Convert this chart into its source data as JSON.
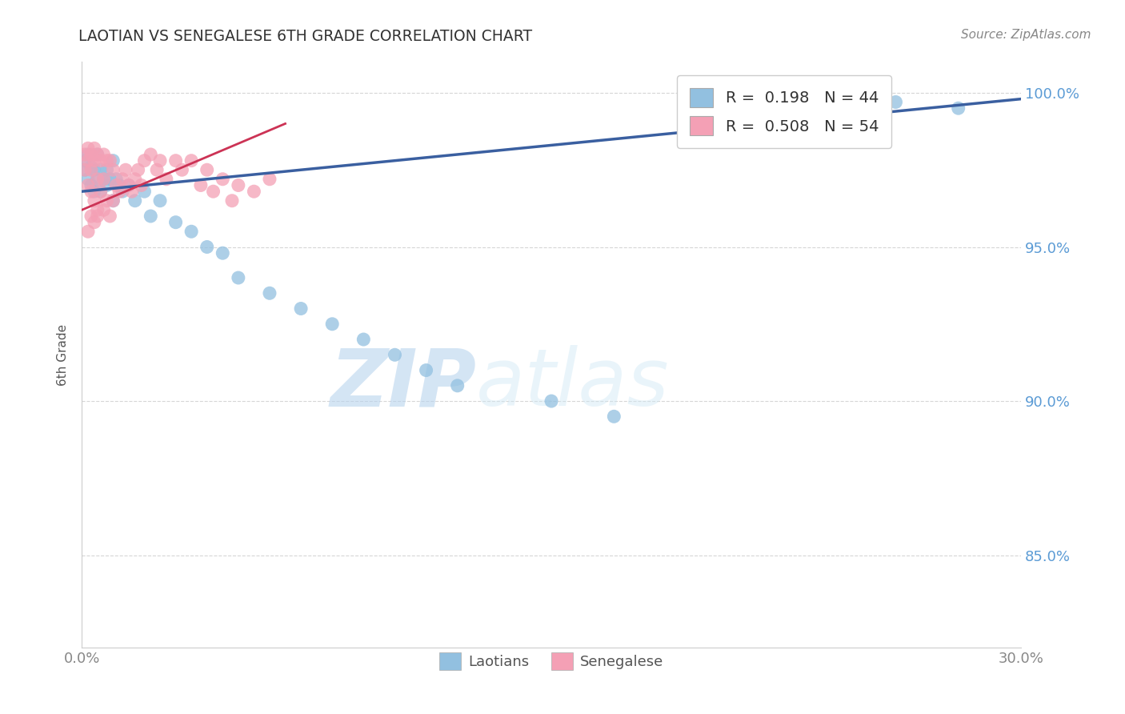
{
  "title": "LAOTIAN VS SENEGALESE 6TH GRADE CORRELATION CHART",
  "source": "Source: ZipAtlas.com",
  "ylabel": "6th Grade",
  "xmin": 0.0,
  "xmax": 0.3,
  "ymin": 0.82,
  "ymax": 1.01,
  "laotian_color": "#92c0e0",
  "senegalese_color": "#f4a0b5",
  "laotian_line_color": "#3a5fa0",
  "senegalese_line_color": "#cc3355",
  "R_laotian": 0.198,
  "N_laotian": 44,
  "R_senegalese": 0.508,
  "N_senegalese": 54,
  "watermark_zip": "ZIP",
  "watermark_atlas": "atlas",
  "grid_color": "#cccccc",
  "laotian_x": [
    0.001,
    0.001,
    0.002,
    0.002,
    0.003,
    0.003,
    0.004,
    0.004,
    0.005,
    0.005,
    0.006,
    0.006,
    0.007,
    0.008,
    0.008,
    0.009,
    0.01,
    0.01,
    0.011,
    0.012,
    0.013,
    0.015,
    0.017,
    0.02,
    0.022,
    0.025,
    0.03,
    0.035,
    0.04,
    0.045,
    0.05,
    0.06,
    0.07,
    0.08,
    0.09,
    0.1,
    0.11,
    0.12,
    0.15,
    0.17,
    0.2,
    0.23,
    0.26,
    0.28
  ],
  "laotian_y": [
    0.978,
    0.975,
    0.98,
    0.972,
    0.976,
    0.97,
    0.975,
    0.968,
    0.98,
    0.972,
    0.975,
    0.968,
    0.972,
    0.97,
    0.975,
    0.972,
    0.978,
    0.965,
    0.972,
    0.97,
    0.968,
    0.97,
    0.965,
    0.968,
    0.96,
    0.965,
    0.958,
    0.955,
    0.95,
    0.948,
    0.94,
    0.935,
    0.93,
    0.925,
    0.92,
    0.915,
    0.91,
    0.905,
    0.9,
    0.895,
    0.992,
    0.995,
    0.997,
    0.995
  ],
  "senegalese_x": [
    0.001,
    0.001,
    0.002,
    0.002,
    0.002,
    0.003,
    0.003,
    0.003,
    0.004,
    0.004,
    0.004,
    0.005,
    0.005,
    0.005,
    0.006,
    0.006,
    0.007,
    0.007,
    0.007,
    0.008,
    0.008,
    0.009,
    0.009,
    0.01,
    0.01,
    0.011,
    0.012,
    0.013,
    0.014,
    0.015,
    0.016,
    0.017,
    0.018,
    0.019,
    0.02,
    0.022,
    0.024,
    0.025,
    0.027,
    0.03,
    0.032,
    0.035,
    0.038,
    0.04,
    0.042,
    0.045,
    0.048,
    0.05,
    0.055,
    0.06,
    0.002,
    0.003,
    0.004,
    0.005
  ],
  "senegalese_y": [
    0.98,
    0.975,
    0.982,
    0.978,
    0.97,
    0.98,
    0.975,
    0.968,
    0.982,
    0.978,
    0.965,
    0.98,
    0.972,
    0.96,
    0.978,
    0.968,
    0.98,
    0.972,
    0.962,
    0.978,
    0.965,
    0.978,
    0.96,
    0.975,
    0.965,
    0.97,
    0.968,
    0.972,
    0.975,
    0.97,
    0.968,
    0.972,
    0.975,
    0.97,
    0.978,
    0.98,
    0.975,
    0.978,
    0.972,
    0.978,
    0.975,
    0.978,
    0.97,
    0.975,
    0.968,
    0.972,
    0.965,
    0.97,
    0.968,
    0.972,
    0.955,
    0.96,
    0.958,
    0.962
  ]
}
